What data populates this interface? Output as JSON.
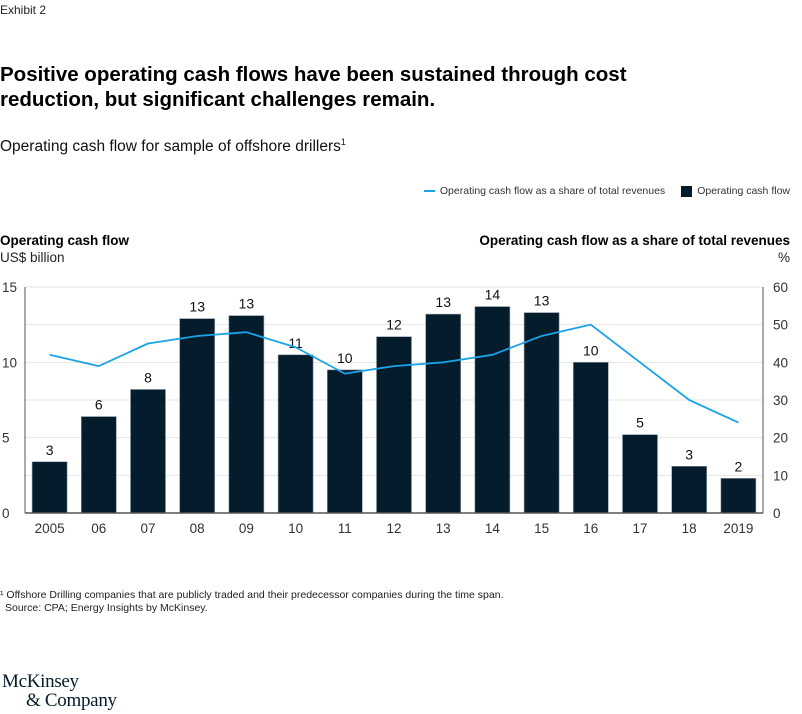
{
  "exhibit_label": "Exhibit 2",
  "title": "Positive operating cash flows have been sustained through cost reduction, but significant challenges remain.",
  "subtitle": "Operating cash flow for sample of offshore drillers",
  "subtitle_footnote_marker": "1",
  "legend": {
    "line_label": "Operating cash flow as a share of total revenues",
    "bar_label": "Operating cash flow"
  },
  "left_axis": {
    "title": "Operating cash flow",
    "unit": "US$ billion"
  },
  "right_axis": {
    "title": "Operating cash flow as a share of total revenues",
    "unit": "%"
  },
  "footnote": "¹ Offshore Drilling companies that are publicly traded and their predecessor companies during the time span.",
  "source": "Source: CPA; Energy Insights by McKinsey.",
  "logo": {
    "line1": "McKinsey",
    "line2": "& Company"
  },
  "colors": {
    "bar": "#051c2c",
    "line": "#1aa3e8",
    "grid": "#e6e6e6",
    "axis": "#555555"
  },
  "chart_data": {
    "type": "bar",
    "categories": [
      "2005",
      "06",
      "07",
      "08",
      "09",
      "10",
      "11",
      "12",
      "13",
      "14",
      "15",
      "16",
      "17",
      "18",
      "2019"
    ],
    "series": [
      {
        "name": "Operating cash flow",
        "type": "bar",
        "axis": "left",
        "values": [
          3.4,
          6.4,
          8.2,
          12.9,
          13.1,
          10.5,
          9.5,
          11.7,
          13.2,
          13.7,
          13.3,
          10.0,
          5.2,
          3.1,
          2.3
        ],
        "data_labels": [
          "3",
          "6",
          "8",
          "13",
          "13",
          "11",
          "10",
          "12",
          "13",
          "14",
          "13",
          "10",
          "5",
          "3",
          "2"
        ]
      },
      {
        "name": "Operating cash flow as a share of total revenues",
        "type": "line",
        "axis": "right",
        "values": [
          42,
          39,
          45,
          47,
          48,
          44,
          37,
          39,
          40,
          42,
          47,
          50,
          40,
          30,
          24
        ]
      }
    ],
    "title": "Operating cash flow for sample of offshore drillers",
    "ylabel": "Operating cash flow, US$ billion",
    "ylim": [
      0,
      15
    ],
    "yticks": [
      0,
      5,
      10,
      15
    ],
    "y2label": "Operating cash flow as a share of total revenues, %",
    "y2lim": [
      0,
      60
    ],
    "y2ticks": [
      0,
      10,
      20,
      30,
      40,
      50,
      60
    ],
    "grid": true,
    "legend_position": "top-right"
  }
}
